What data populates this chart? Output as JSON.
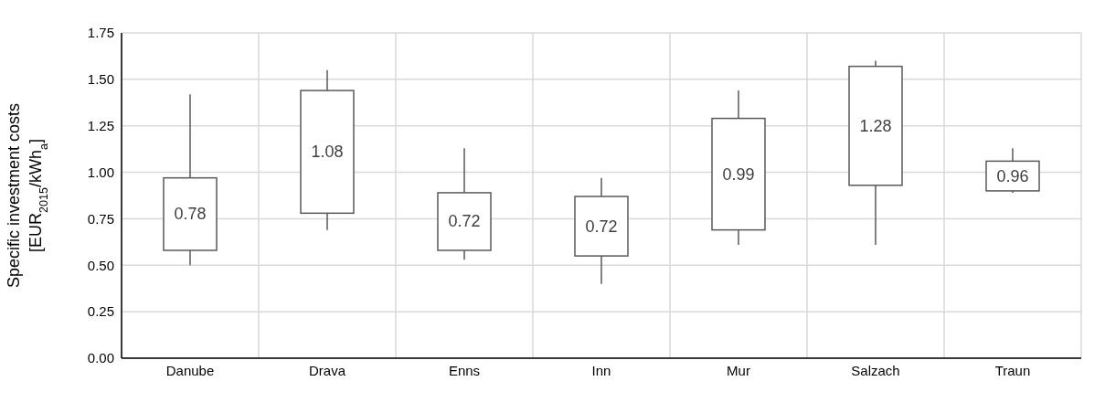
{
  "chart_data": {
    "type": "box",
    "ylabel": "Specific investment costs\n[EUR$_{2015}$/kWh$_{a}$]",
    "categories": [
      "Danube",
      "Drava",
      "Enns",
      "Inn",
      "Mur",
      "Salzach",
      "Traun"
    ],
    "boxes": [
      {
        "low": 0.5,
        "q1": 0.58,
        "q3": 0.97,
        "high": 1.42
      },
      {
        "low": 0.69,
        "q1": 0.78,
        "q3": 1.44,
        "high": 1.55
      },
      {
        "low": 0.53,
        "q1": 0.58,
        "q3": 0.89,
        "high": 1.13
      },
      {
        "low": 0.4,
        "q1": 0.55,
        "q3": 0.87,
        "high": 0.97
      },
      {
        "low": 0.61,
        "q1": 0.69,
        "q3": 1.29,
        "high": 1.44
      },
      {
        "low": 0.61,
        "q1": 0.93,
        "q3": 1.57,
        "high": 1.6
      },
      {
        "low": 0.89,
        "q1": 0.9,
        "q3": 1.06,
        "high": 1.13
      }
    ],
    "color": "#595959",
    "annotations": [
      "0.78",
      "1.08",
      "0.72",
      "0.72",
      "0.99",
      "1.28",
      "0.96"
    ],
    "ylim": [
      0,
      1.75
    ],
    "yticks": [
      {
        "value": 0,
        "label": "0.00"
      },
      {
        "value": 0.25,
        "label": "0.25"
      },
      {
        "value": 0.5,
        "label": "0.50"
      },
      {
        "value": 0.75,
        "label": "0.75"
      },
      {
        "value": 1,
        "label": "1.00"
      },
      {
        "value": 1.25,
        "label": "1.25"
      },
      {
        "value": 1.5,
        "label": "1.50"
      },
      {
        "value": 1.75,
        "label": "1.75"
      }
    ],
    "grid": true
  }
}
